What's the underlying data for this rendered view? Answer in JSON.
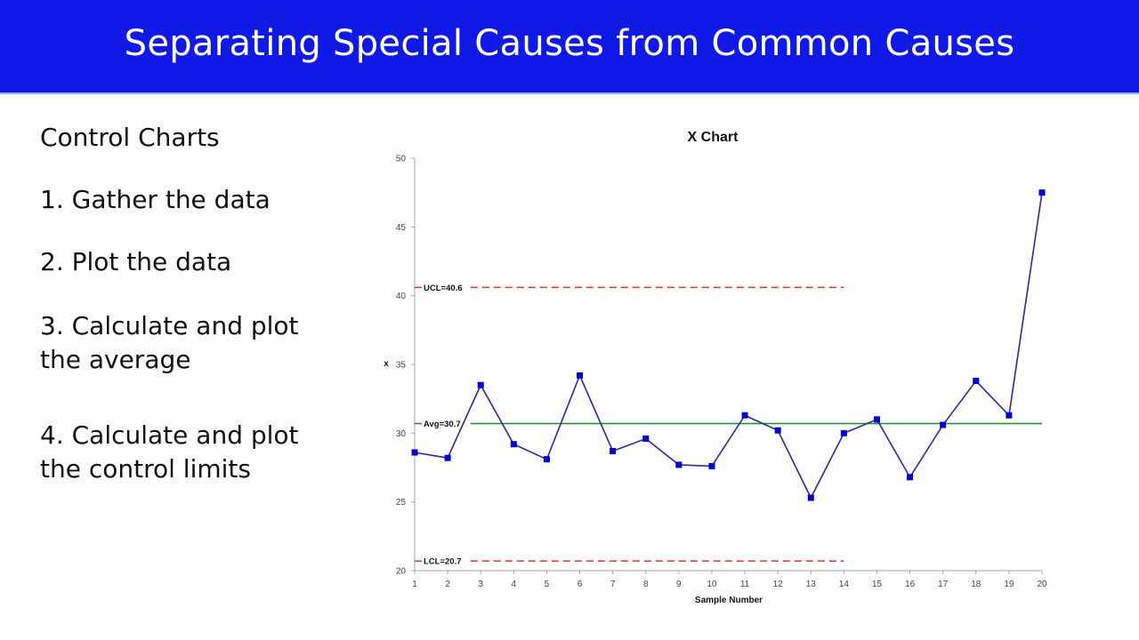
{
  "header": {
    "title": "Separating Special Causes from Common Causes",
    "background": "#1019e6"
  },
  "left_panel": {
    "heading": "Control Charts",
    "steps": [
      {
        "line1": "1. Gather the data",
        "line2": ""
      },
      {
        "line1": "2. Plot the data",
        "line2": ""
      },
      {
        "line1": "3. Calculate and plot",
        "line2": "the average"
      },
      {
        "line1": "4. Calculate and plot",
        "line2": "the control limits"
      }
    ]
  },
  "chart_data": {
    "type": "line",
    "title": "X Chart",
    "xlabel": "Sample Number",
    "ylabel": "x",
    "x": [
      1,
      2,
      3,
      4,
      5,
      6,
      7,
      8,
      9,
      10,
      11,
      12,
      13,
      14,
      15,
      16,
      17,
      18,
      19,
      20
    ],
    "series": [
      {
        "name": "X",
        "color": "#0000cc",
        "marker": "square",
        "values": [
          28.6,
          28.2,
          33.5,
          29.2,
          28.1,
          34.2,
          28.7,
          29.6,
          27.7,
          27.6,
          31.3,
          30.2,
          25.3,
          30.0,
          31.0,
          26.8,
          30.6,
          33.8,
          31.3,
          47.5
        ]
      }
    ],
    "reference_lines": [
      {
        "label": "UCL=40.6",
        "value": 40.6,
        "style": "dashed",
        "color": "#e03030",
        "x_end": 14
      },
      {
        "label": "Avg=30.7",
        "value": 30.7,
        "style": "solid",
        "color": "#1e8c1e",
        "x_end": 20
      },
      {
        "label": "LCL=20.7",
        "value": 20.7,
        "style": "dashed",
        "color": "#e03030",
        "x_end": 14
      }
    ],
    "yticks": [
      20,
      25,
      30,
      35,
      40,
      45,
      50
    ],
    "xticks": [
      1,
      2,
      3,
      4,
      5,
      6,
      7,
      8,
      9,
      10,
      11,
      12,
      13,
      14,
      15,
      16,
      17,
      18,
      19,
      20
    ],
    "ylim": [
      20,
      50
    ],
    "xlim": [
      1,
      20
    ],
    "grid": false,
    "legend": "none"
  }
}
